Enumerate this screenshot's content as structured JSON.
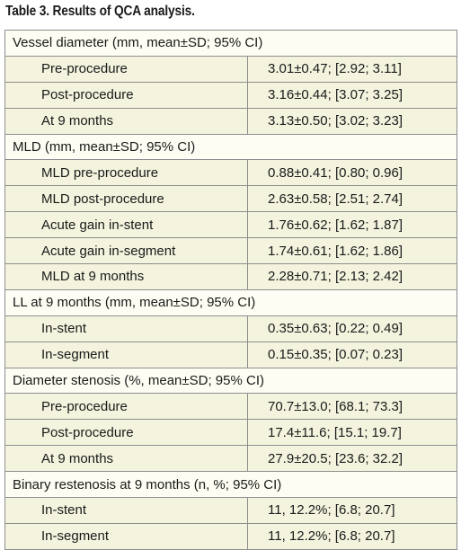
{
  "caption": "Table 3. Results of QCA analysis.",
  "sections": [
    {
      "title": "Vessel diameter (mm, mean±SD; 95% CI)",
      "rows": [
        {
          "label": "Pre-procedure",
          "value": "3.01±0.47; [2.92; 3.11]"
        },
        {
          "label": "Post-procedure",
          "value": "3.16±0.44; [3.07; 3.25]"
        },
        {
          "label": "At 9 months",
          "value": "3.13±0.50; [3.02; 3.23]"
        }
      ]
    },
    {
      "title": "MLD (mm, mean±SD; 95% CI)",
      "rows": [
        {
          "label": "MLD pre-procedure",
          "value": "0.88±0.41; [0.80; 0.96]"
        },
        {
          "label": "MLD post-procedure",
          "value": "2.63±0.58; [2.51; 2.74]"
        },
        {
          "label": "Acute gain in-stent",
          "value": "1.76±0.62; [1.62; 1.87]"
        },
        {
          "label": "Acute gain in-segment",
          "value": "1.74±0.61; [1.62; 1.86]"
        },
        {
          "label": "MLD at 9 months",
          "value": "2.28±0.71; [2.13; 2.42]"
        }
      ]
    },
    {
      "title": "LL at 9 months (mm, mean±SD; 95% CI)",
      "rows": [
        {
          "label": "In-stent",
          "value": "0.35±0.63; [0.22; 0.49]"
        },
        {
          "label": "In-segment",
          "value": "0.15±0.35; [0.07; 0.23]"
        }
      ]
    },
    {
      "title": "Diameter stenosis (%, mean±SD; 95% CI)",
      "rows": [
        {
          "label": "Pre-procedure",
          "value": "70.7±13.0; [68.1; 73.3]"
        },
        {
          "label": "Post-procedure",
          "value": "17.4±11.6; [15.1; 19.7]"
        },
        {
          "label": "At 9 months",
          "value": "27.9±20.5; [23.6; 32.2]"
        }
      ]
    },
    {
      "title": "Binary restenosis at 9 months (n, %; 95% CI)",
      "rows": [
        {
          "label": "In-stent",
          "value": "11, 12.2%; [6.8; 20.7]"
        },
        {
          "label": "In-segment",
          "value": "11, 12.2%; [6.8; 20.7]"
        }
      ]
    }
  ]
}
